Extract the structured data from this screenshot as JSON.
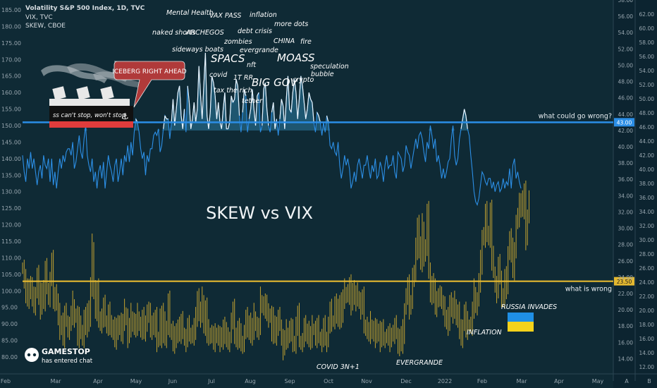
{
  "header": {
    "title": "Volatility S&P 500 Index, 1D, TVC",
    "line2": "VIX, TVC",
    "line3": "SKEW, CBOE"
  },
  "chart_data": {
    "type": "line",
    "title": "SKEW vs VIX",
    "x_ticks": [
      "Feb",
      "Mar",
      "Apr",
      "May",
      "Jun",
      "Jul",
      "Aug",
      "Sep",
      "Oct",
      "Nov",
      "Dec",
      "2022",
      "Feb",
      "Mar",
      "Apr",
      "May",
      "A"
    ],
    "left_axis": {
      "name": "SKEW",
      "min": 77,
      "max": 188,
      "ticks": [
        80,
        85,
        90,
        95,
        100,
        105,
        110,
        115,
        120,
        125,
        130,
        135,
        140,
        145,
        150,
        155,
        160,
        165,
        170,
        175,
        180,
        185
      ]
    },
    "right_axis_1": {
      "min": 13.0,
      "max": 58.0,
      "ticks": [
        "14.00",
        "16.00",
        "18.00",
        "20.00",
        "22.00",
        "24.00",
        "26.00",
        "28.00",
        "30.00",
        "32.00",
        "34.00",
        "36.00",
        "38.00",
        "40.00",
        "42.00",
        "44.00",
        "46.00",
        "48.00",
        "50.00",
        "52.00",
        "54.00",
        "56.00",
        "58.00"
      ]
    },
    "right_axis_2": {
      "min": 12.0,
      "max": 64.0,
      "ticks": [
        "12.00",
        "14.00",
        "16.00",
        "18.00",
        "20.00",
        "22.00",
        "24.00",
        "26.00",
        "28.00",
        "30.00",
        "32.00",
        "34.00",
        "36.00",
        "38.00",
        "40.00",
        "42.00",
        "44.00",
        "46.00",
        "48.00",
        "50.00",
        "52.00",
        "54.00",
        "56.00",
        "58.00",
        "60.00",
        "62.00"
      ]
    },
    "series": [
      {
        "name": "SKEW",
        "color": "#2c8fe6",
        "fill_above_level": 148.5,
        "fill_color": "#2b7aa0",
        "values": [
          141,
          136,
          133,
          140,
          137,
          142,
          137,
          140,
          136,
          132,
          136,
          138,
          134,
          141,
          138,
          137,
          140,
          133,
          140,
          132,
          136,
          131,
          136,
          140,
          137,
          141,
          139,
          142,
          143,
          143,
          141,
          145,
          137,
          139,
          143,
          147,
          142,
          140,
          146,
          150,
          141,
          138,
          136,
          140,
          133,
          136,
          131,
          136,
          138,
          134,
          139,
          131,
          136,
          141,
          138,
          136,
          133,
          138,
          140,
          133,
          136,
          140,
          135,
          141,
          139,
          144,
          139,
          145,
          141,
          148,
          152,
          151,
          148,
          143,
          140,
          142,
          135,
          141,
          139,
          143,
          143,
          147,
          148,
          147,
          149,
          142,
          144,
          149,
          153,
          152,
          152,
          146,
          151,
          158,
          150,
          155,
          160,
          162,
          153,
          149,
          155,
          148,
          162,
          157,
          149,
          152,
          157,
          151,
          155,
          168,
          159,
          152,
          162,
          172,
          153,
          149,
          154,
          165,
          163,
          159,
          152,
          157,
          151,
          149,
          155,
          160,
          149,
          149,
          151,
          159,
          157,
          158,
          164,
          162,
          153,
          148,
          154,
          161,
          159,
          148,
          152,
          155,
          161,
          155,
          150,
          159,
          160,
          148,
          150,
          161,
          163,
          155,
          150,
          148,
          154,
          157,
          149,
          152,
          147,
          152,
          158,
          156,
          149,
          158,
          165,
          155,
          154,
          160,
          164,
          160,
          152,
          158,
          165,
          162,
          157,
          152,
          155,
          160,
          158,
          157,
          151,
          148,
          154,
          153,
          151,
          147,
          151,
          148,
          153,
          151,
          144,
          143,
          145,
          142,
          141,
          145,
          138,
          134,
          137,
          141,
          138,
          140,
          137,
          131,
          133,
          136,
          133,
          138,
          140,
          137,
          134,
          138,
          138,
          141,
          137,
          134,
          138,
          136,
          140,
          134,
          135,
          139,
          137,
          133,
          138,
          141,
          137,
          138,
          138,
          141,
          136,
          134,
          142,
          141,
          140,
          136,
          138,
          144,
          142,
          141,
          137,
          140,
          143,
          146,
          143,
          147,
          148,
          146,
          142,
          139,
          145,
          143,
          150,
          147,
          143,
          146,
          139,
          141,
          138,
          134,
          137,
          134,
          136,
          139,
          140,
          146,
          150,
          141,
          138,
          140,
          146,
          149,
          152,
          155,
          153,
          149,
          147,
          141,
          136,
          130,
          127,
          126,
          128,
          132,
          136,
          135,
          133,
          132,
          134,
          134,
          131,
          133,
          130,
          132,
          133,
          130,
          131,
          134,
          131,
          133,
          132,
          137,
          131,
          138,
          140,
          134,
          136,
          133,
          131
        ]
      },
      {
        "name": "VIX",
        "color": "#e3b830",
        "level_line": 23.5,
        "values": [
          25.0,
          23.5,
          22.0,
          21.0,
          23.0,
          22.5,
          21.0,
          20.5,
          22.0,
          24.0,
          21.5,
          20.0,
          22.5,
          21.0,
          24.5,
          22.5,
          21.5,
          23.5,
          25.5,
          21.0,
          22.0,
          20.5,
          19.0,
          17.5,
          18.5,
          16.5,
          19.0,
          18.5,
          17.5,
          18.0,
          19.0,
          20.5,
          19.0,
          19.0,
          16.5,
          18.5,
          17.0,
          16.5,
          18.5,
          17.5,
          20.0,
          18.5,
          22.5,
          27.5,
          22.5,
          19.5,
          22.0,
          19.0,
          18.0,
          19.0,
          20.0,
          18.5,
          18.0,
          19.5,
          17.5,
          17.5,
          18.0,
          16.0,
          17.5,
          17.5,
          18.5,
          17.0,
          18.0,
          19.5,
          19.0,
          16.5,
          17.5,
          19.0,
          18.5,
          17.5,
          18.0,
          19.0,
          18.0,
          17.5,
          18.5,
          17.0,
          18.5,
          19.5,
          19.0,
          17.5,
          18.5,
          17.5,
          18.5,
          16.0,
          16.5,
          19.0,
          16.5,
          19.0,
          16.5,
          17.5,
          20.5,
          17.5,
          17.5,
          15.5,
          16.5,
          16.5,
          18.0,
          17.0,
          18.0,
          17.0,
          16.5,
          16.0,
          17.5,
          17.0,
          17.0,
          16.5,
          17.5,
          18.5,
          21.5,
          19.5,
          19.0,
          21.0,
          18.0,
          20.0,
          16.5,
          17.0,
          17.0,
          16.5,
          16.0,
          16.5,
          17.0,
          16.5,
          16.0,
          16.0,
          18.0,
          17.0,
          16.0,
          16.0,
          16.5,
          18.5,
          19.5,
          17.0,
          16.0,
          17.5,
          16.5,
          15.5,
          16.0,
          17.0,
          18.5,
          17.5,
          18.5,
          16.5,
          17.5,
          19.0,
          18.0,
          17.5,
          17.5,
          21.0,
          20.5,
          20.5,
          19.5,
          20.0,
          19.0,
          19.0,
          17.0,
          18.5,
          16.5,
          18.0,
          18.5,
          18.0,
          16.5,
          15.0,
          16.0,
          17.0,
          16.5,
          17.5,
          17.0,
          16.0,
          15.5,
          18.0,
          19.0,
          16.0,
          16.0,
          16.0,
          17.5,
          17.0,
          17.5,
          16.0,
          16.5,
          17.5,
          17.5,
          16.5,
          17.5,
          16.5,
          16.5,
          16.0,
          17.5,
          16.5,
          16.0,
          18.0,
          19.5,
          18.5,
          18.5,
          20.5,
          19.5,
          18.5,
          21.0,
          19.0,
          21.0,
          22.0,
          22.0,
          21.5,
          22.5,
          20.5,
          22.5,
          21.5,
          21.0,
          21.5,
          21.0,
          20.0,
          21.0,
          18.0,
          18.0,
          17.0,
          17.0,
          18.0,
          17.0,
          17.5,
          16.5,
          17.0,
          17.5,
          16.0,
          17.0,
          16.5,
          16.5,
          16.5,
          16.5,
          16.0,
          17.0,
          17.0,
          17.5,
          17.0,
          15.5,
          16.5,
          15.5,
          17.0,
          20.0,
          21.5,
          22.5,
          20.0,
          21.0,
          24.0,
          24.0,
          27.0,
          30.5,
          27.5,
          25.5,
          30.0,
          26.5,
          27.5,
          31.5,
          25.0,
          21.5,
          23.0,
          22.0,
          20.0,
          21.5,
          21.5,
          21.0,
          21.0,
          20.5,
          18.5,
          18.5,
          18.0,
          21.0,
          20.0,
          19.5,
          20.5,
          19.0,
          19.5,
          17.0,
          16.5,
          18.0,
          19.5,
          17.5,
          18.0,
          18.0,
          18.0,
          19.5,
          22.0,
          20.5,
          21.0,
          23.0,
          25.5,
          29.0,
          28.5,
          31.5,
          29.5,
          28.5,
          32.0,
          26.0,
          24.5,
          23.0,
          22.0,
          25.0,
          24.0,
          21.5,
          21.0,
          23.5,
          22.5,
          27.0,
          28.5,
          27.0,
          24.5,
          27.5,
          30.5,
          31.0,
          32.5,
          33.5,
          32.0,
          34.0,
          28.5,
          31.5,
          33.5
        ]
      }
    ],
    "level_labels": [
      {
        "text": "what could go wrong?",
        "value": "43.00"
      },
      {
        "text": "what is wrong",
        "value": "23.50"
      }
    ],
    "annotations": [
      "Mental Health",
      "VAX PASS",
      "inflation",
      "more dots",
      "naked shorts",
      "ARCHEGOS",
      "debt crisis",
      "zombies",
      "CHINA",
      "fire",
      "sideways boats",
      "evergrande",
      "SPACS",
      "MOASS",
      "nft",
      "speculation",
      "bubble",
      "covid",
      "1T RR",
      "BIG GOV",
      "crypto",
      "tax the rich",
      "tether",
      "COVID 3N+1",
      "EVERGRANDE",
      "INFLATION",
      "RUSSIA INVADES"
    ],
    "ship": {
      "callout": "ICEBERG RIGHT AHEAD",
      "caption": "ss can't stop, won't stop"
    },
    "branding": {
      "logo_text": "GAMESTOP",
      "tagline": "has entered chat"
    },
    "colors": {
      "background": "#0f2a35",
      "skew": "#2c8fe6",
      "vix": "#e3b830",
      "callout_bg": "#b03a3a",
      "ukraine_blue": "#1f8fe5",
      "ukraine_yellow": "#f5d21a"
    }
  }
}
